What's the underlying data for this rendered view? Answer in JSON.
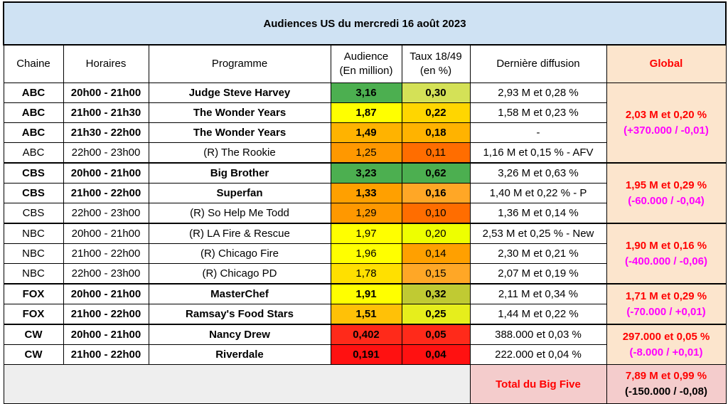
{
  "title": "Audiences US du mercredi 16 août 2023",
  "headers": {
    "chaine": "Chaine",
    "horaires": "Horaires",
    "programme": "Programme",
    "audience_l1": "Audience",
    "audience_l2": "(En million)",
    "taux_l1": "Taux 18/49",
    "taux_l2": "(en %)",
    "derniere": "Dernière diffusion",
    "global": "Global"
  },
  "rows": [
    {
      "chaine": "ABC",
      "horaires": "20h00 - 21h00",
      "programme": "Judge Steve Harvey",
      "audience": "3,16",
      "taux": "0,30",
      "derniere": "2,93 M et 0,28 %",
      "bold": true,
      "aud_color": "#4caf50",
      "taux_color": "#d4e157"
    },
    {
      "chaine": "ABC",
      "horaires": "21h00 - 21h30",
      "programme": "The Wonder Years",
      "audience": "1,87",
      "taux": "0,22",
      "derniere": "1,58 M et 0,23 %",
      "bold": true,
      "aud_color": "#ffff00",
      "taux_color": "#ffd600"
    },
    {
      "chaine": "ABC",
      "horaires": "21h30 - 22h00",
      "programme": "The Wonder Years",
      "audience": "1,49",
      "taux": "0,18",
      "derniere": "-",
      "bold": true,
      "aud_color": "#ffb300",
      "taux_color": "#ffb300"
    },
    {
      "chaine": "ABC",
      "horaires": "22h00 - 23h00",
      "programme": "(R) The Rookie",
      "audience": "1,25",
      "taux": "0,11",
      "derniere": "1,16 M et 0,15 % - AFV",
      "bold": false,
      "aud_color": "#ff9800",
      "taux_color": "#ff6d00"
    },
    {
      "chaine": "CBS",
      "horaires": "20h00 - 21h00",
      "programme": "Big Brother",
      "audience": "3,23",
      "taux": "0,62",
      "derniere": "3,26 M et 0,63 %",
      "bold": true,
      "aud_color": "#4caf50",
      "taux_color": "#4caf50"
    },
    {
      "chaine": "CBS",
      "horaires": "21h00 - 22h00",
      "programme": "Superfan",
      "audience": "1,33",
      "taux": "0,16",
      "derniere": "1,40 M et 0,22 % - P",
      "bold": true,
      "aud_color": "#ffa000",
      "taux_color": "#ffa726"
    },
    {
      "chaine": "CBS",
      "horaires": "22h00 - 23h00",
      "programme": "(R) So Help Me Todd",
      "audience": "1,29",
      "taux": "0,10",
      "derniere": "1,36 M et 0,14 %",
      "bold": false,
      "aud_color": "#ff9800",
      "taux_color": "#ff6d00"
    },
    {
      "chaine": "NBC",
      "horaires": "20h00 - 21h00",
      "programme": "(R) LA Fire & Rescue",
      "audience": "1,97",
      "taux": "0,20",
      "derniere": "2,53 M et 0,25 % - New",
      "bold": false,
      "aud_color": "#ffff00",
      "taux_color": "#eeff00"
    },
    {
      "chaine": "NBC",
      "horaires": "21h00 - 22h00",
      "programme": "(R) Chicago Fire",
      "audience": "1,96",
      "taux": "0,14",
      "derniere": "2,30 M et 0,21 %",
      "bold": false,
      "aud_color": "#ffff00",
      "taux_color": "#ffa000"
    },
    {
      "chaine": "NBC",
      "horaires": "22h00 - 23h00",
      "programme": "(R) Chicago PD",
      "audience": "1,78",
      "taux": "0,15",
      "derniere": "2,07 M et 0,19 %",
      "bold": false,
      "aud_color": "#ffe000",
      "taux_color": "#ffa726"
    },
    {
      "chaine": "FOX",
      "horaires": "20h00 - 21h00",
      "programme": "MasterChef",
      "audience": "1,91",
      "taux": "0,32",
      "derniere": "2,11 M et 0,34 %",
      "bold": true,
      "aud_color": "#ffff00",
      "taux_color": "#c0ca33"
    },
    {
      "chaine": "FOX",
      "horaires": "21h00 - 22h00",
      "programme": "Ramsay's Food Stars",
      "audience": "1,51",
      "taux": "0,25",
      "derniere": "1,44 M et 0,22 %",
      "bold": true,
      "aud_color": "#ffc107",
      "taux_color": "#e6ee1c"
    },
    {
      "chaine": "CW",
      "horaires": "20h00 - 21h00",
      "programme": "Nancy Drew",
      "audience": "0,402",
      "taux": "0,05",
      "derniere": "388.000 et 0,03 %",
      "bold": true,
      "aud_color": "#ff2a1a",
      "taux_color": "#ff2a1a"
    },
    {
      "chaine": "CW",
      "horaires": "21h00 - 22h00",
      "programme": "Riverdale",
      "audience": "0,191",
      "taux": "0,04",
      "derniere": "222.000 et 0,04 %",
      "bold": true,
      "aud_color": "#ff1111",
      "taux_color": "#ff1111"
    }
  ],
  "globals": [
    {
      "value": "2,03 M et 0,20 %",
      "delta": "(+370.000 / -0,01)"
    },
    {
      "value": "1,95 M et 0,29 %",
      "delta": "(-60.000 / -0,04)"
    },
    {
      "value": "1,90 M et 0,16 %",
      "delta": "(-400.000 / -0,06)"
    },
    {
      "value": "1,71 M et 0,29 %",
      "delta": "(-70.000 / +0,01)"
    },
    {
      "value": "297.000 et 0,05 %",
      "delta": "(-8.000 / +0,01)"
    }
  ],
  "total": {
    "label": "Total du Big Five",
    "value": "7,89 M et 0,99 %",
    "delta": "(-150.000 / -0,08)"
  }
}
